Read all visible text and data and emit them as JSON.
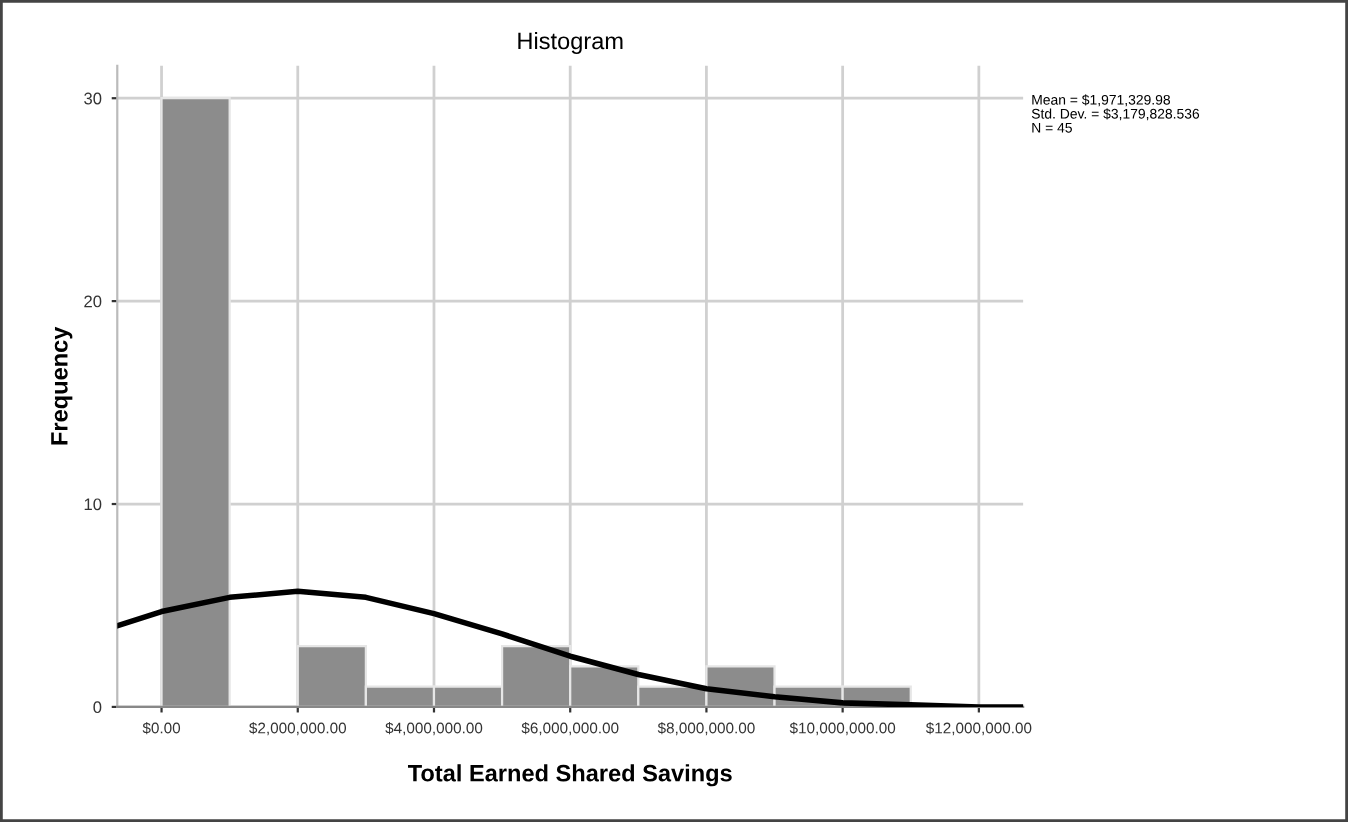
{
  "chart_data": {
    "type": "histogram",
    "title": "Histogram",
    "xlabel": "Total Earned Shared Savings",
    "ylabel": "Frequency",
    "bins": [
      0,
      1000000,
      2000000,
      3000000,
      4000000,
      5000000,
      6000000,
      7000000,
      8000000,
      9000000,
      10000000,
      11000000
    ],
    "values": [
      30,
      0,
      3,
      1,
      1,
      3,
      2,
      1,
      2,
      1,
      1
    ],
    "color": "#8c8c8c",
    "series": [
      {
        "type": "line",
        "color": "#000000",
        "x": [
          -650000,
          0,
          1000000,
          2000000,
          3000000,
          4000000,
          5000000,
          6000000,
          7000000,
          8000000,
          9000000,
          10000000,
          11000000,
          12000000,
          12650000
        ],
        "values": [
          4.0,
          4.7,
          5.4,
          5.7,
          5.4,
          4.6,
          3.6,
          2.5,
          1.6,
          0.9,
          0.5,
          0.2,
          0.1,
          0.0,
          0.0
        ]
      }
    ],
    "xlim": [
      -650000,
      12650000
    ],
    "ylim": [
      0,
      31.6
    ],
    "xticks": [
      {
        "value": 0,
        "label": "$0.00"
      },
      {
        "value": 2000000,
        "label": "$2,000,000.00"
      },
      {
        "value": 4000000,
        "label": "$4,000,000.00"
      },
      {
        "value": 6000000,
        "label": "$6,000,000.00"
      },
      {
        "value": 8000000,
        "label": "$8,000,000.00"
      },
      {
        "value": 10000000,
        "label": "$10,000,000.00"
      },
      {
        "value": 12000000,
        "label": "$12,000,000.00"
      }
    ],
    "yticks": [
      0,
      10,
      20,
      30
    ],
    "grid": true,
    "annotations": [
      "Mean = $1,971,329.98\nStd. Dev. = $3,179,828.536\nN = 45"
    ]
  }
}
